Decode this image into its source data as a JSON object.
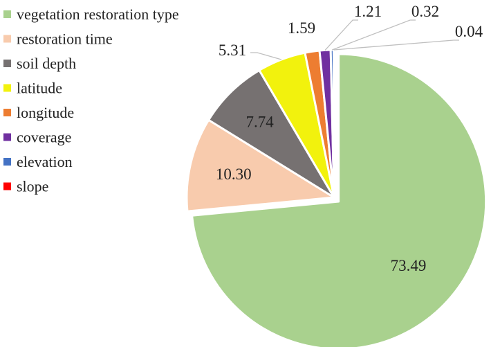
{
  "chart_data": {
    "type": "pie",
    "title": "",
    "legend_position": "left",
    "slices": [
      {
        "label": "vegetation restoration type",
        "value": 73.49,
        "display": "73.49",
        "color": "#a9d18e"
      },
      {
        "label": "restoration time",
        "value": 10.3,
        "display": "10.30",
        "color": "#f8cbad"
      },
      {
        "label": "soil depth",
        "value": 7.74,
        "display": "7.74",
        "color": "#767171"
      },
      {
        "label": "latitude",
        "value": 5.31,
        "display": "5.31",
        "color": "#f2f20d"
      },
      {
        "label": "longitude",
        "value": 1.59,
        "display": "1.59",
        "color": "#ed7d31"
      },
      {
        "label": "coverage",
        "value": 1.21,
        "display": "1.21",
        "color": "#7030a0"
      },
      {
        "label": "elevation",
        "value": 0.32,
        "display": "0.32",
        "color": "#4472c4"
      },
      {
        "label": "slope",
        "value": 0.04,
        "display": "0.04",
        "color": "#ff0000"
      }
    ]
  }
}
